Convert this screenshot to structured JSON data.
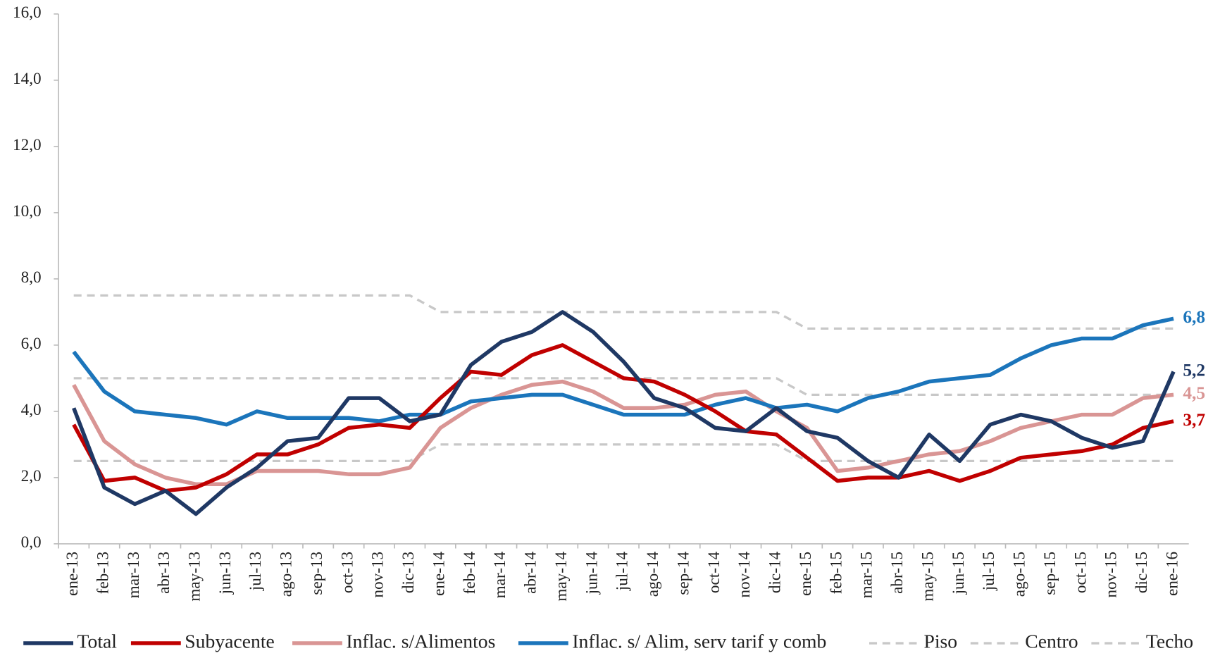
{
  "chart_data": {
    "type": "line",
    "categories": [
      "ene-13",
      "feb-13",
      "mar-13",
      "abr-13",
      "may-13",
      "jun-13",
      "jul-13",
      "ago-13",
      "sep-13",
      "oct-13",
      "nov-13",
      "dic-13",
      "ene-14",
      "feb-14",
      "mar-14",
      "abr-14",
      "may-14",
      "jun-14",
      "jul-14",
      "ago-14",
      "sep-14",
      "oct-14",
      "nov-14",
      "dic-14",
      "ene-15",
      "feb-15",
      "mar-15",
      "abr-15",
      "may-15",
      "jun-15",
      "jul-15",
      "ago-15",
      "sep-15",
      "oct-15",
      "nov-15",
      "dic-15",
      "ene-16"
    ],
    "ylim": [
      0,
      16
    ],
    "yticks": [
      {
        "value": 0,
        "label": "0,0"
      },
      {
        "value": 2,
        "label": "2,0"
      },
      {
        "value": 4,
        "label": "4,0"
      },
      {
        "value": 6,
        "label": "6,0"
      },
      {
        "value": 8,
        "label": "8,0"
      },
      {
        "value": 10,
        "label": "10,0"
      },
      {
        "value": 12,
        "label": "12,0"
      },
      {
        "value": 14,
        "label": "14,0"
      },
      {
        "value": 16,
        "label": "16,0"
      }
    ],
    "grid": false,
    "legend": "bottom",
    "series": [
      {
        "name": "Total",
        "color": "#1f3864",
        "end_label": "5,2",
        "values": [
          4.1,
          1.7,
          1.2,
          1.6,
          0.9,
          1.7,
          2.3,
          3.1,
          3.2,
          4.4,
          4.4,
          3.7,
          3.9,
          5.4,
          6.1,
          6.4,
          7.0,
          6.4,
          5.5,
          4.4,
          4.1,
          3.5,
          3.4,
          4.1,
          3.4,
          3.2,
          2.5,
          2.0,
          3.3,
          2.5,
          3.6,
          3.9,
          3.7,
          3.2,
          2.9,
          3.1,
          5.2
        ]
      },
      {
        "name": "Subyacente",
        "color": "#c00000",
        "end_label": "3,7",
        "values": [
          3.6,
          1.9,
          2.0,
          1.6,
          1.7,
          2.1,
          2.7,
          2.7,
          3.0,
          3.5,
          3.6,
          3.5,
          4.4,
          5.2,
          5.1,
          5.7,
          6.0,
          5.5,
          5.0,
          4.9,
          4.5,
          4.0,
          3.4,
          3.3,
          2.6,
          1.9,
          2.0,
          2.0,
          2.2,
          1.9,
          2.2,
          2.6,
          2.7,
          2.8,
          3.0,
          3.5,
          3.7
        ]
      },
      {
        "name": "Inflac. s/Alimentos",
        "color": "#d99594",
        "end_label": "4,5",
        "values": [
          4.8,
          3.1,
          2.4,
          2.0,
          1.8,
          1.8,
          2.2,
          2.2,
          2.2,
          2.1,
          2.1,
          2.3,
          3.5,
          4.1,
          4.5,
          4.8,
          4.9,
          4.6,
          4.1,
          4.1,
          4.2,
          4.5,
          4.6,
          4.0,
          3.5,
          2.2,
          2.3,
          2.5,
          2.7,
          2.8,
          3.1,
          3.5,
          3.7,
          3.9,
          3.9,
          4.4,
          4.5
        ]
      },
      {
        "name": "Inflac. s/ Alim, serv tarif y comb",
        "color": "#1b75bb",
        "end_label": "6,8",
        "values": [
          5.8,
          4.6,
          4.0,
          3.9,
          3.8,
          3.6,
          4.0,
          3.8,
          3.8,
          3.8,
          3.7,
          3.9,
          3.9,
          4.3,
          4.4,
          4.5,
          4.5,
          4.2,
          3.9,
          3.9,
          3.9,
          4.2,
          4.4,
          4.1,
          4.2,
          4.0,
          4.4,
          4.6,
          4.9,
          5.0,
          5.1,
          5.6,
          6.0,
          6.2,
          6.2,
          6.6,
          6.8
        ]
      },
      {
        "name": "Piso",
        "color": "#c8c8c8",
        "dashed": true,
        "values": [
          2.5,
          2.5,
          2.5,
          2.5,
          2.5,
          2.5,
          2.5,
          2.5,
          2.5,
          2.5,
          2.5,
          2.5,
          3.0,
          3.0,
          3.0,
          3.0,
          3.0,
          3.0,
          3.0,
          3.0,
          3.0,
          3.0,
          3.0,
          3.0,
          2.5,
          2.5,
          2.5,
          2.5,
          2.5,
          2.5,
          2.5,
          2.5,
          2.5,
          2.5,
          2.5,
          2.5,
          2.5
        ]
      },
      {
        "name": "Centro",
        "color": "#c8c8c8",
        "dashed": true,
        "values": [
          5.0,
          5.0,
          5.0,
          5.0,
          5.0,
          5.0,
          5.0,
          5.0,
          5.0,
          5.0,
          5.0,
          5.0,
          5.0,
          5.0,
          5.0,
          5.0,
          5.0,
          5.0,
          5.0,
          5.0,
          5.0,
          5.0,
          5.0,
          5.0,
          4.5,
          4.5,
          4.5,
          4.5,
          4.5,
          4.5,
          4.5,
          4.5,
          4.5,
          4.5,
          4.5,
          4.5,
          4.5
        ]
      },
      {
        "name": "Techo",
        "color": "#c8c8c8",
        "dashed": true,
        "values": [
          7.5,
          7.5,
          7.5,
          7.5,
          7.5,
          7.5,
          7.5,
          7.5,
          7.5,
          7.5,
          7.5,
          7.5,
          7.0,
          7.0,
          7.0,
          7.0,
          7.0,
          7.0,
          7.0,
          7.0,
          7.0,
          7.0,
          7.0,
          7.0,
          6.5,
          6.5,
          6.5,
          6.5,
          6.5,
          6.5,
          6.5,
          6.5,
          6.5,
          6.5,
          6.5,
          6.5,
          6.5
        ]
      }
    ]
  }
}
